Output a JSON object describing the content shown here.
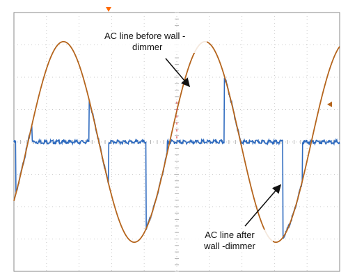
{
  "chart_data": {
    "type": "line",
    "title": "",
    "xlabel": "",
    "ylabel": "",
    "grid": true,
    "grid_divisions": {
      "x": 10,
      "y": 8
    },
    "xlim": [
      0,
      10
    ],
    "ylim": [
      -4,
      4
    ],
    "series": [
      {
        "key": "before",
        "color": "#b5651d",
        "cycles_on_screen": 2.3,
        "amplitude": 3.1,
        "phase_start_fraction": 0.4
      },
      {
        "key": "after",
        "color": "#2f6bbf",
        "amplitude": 3.1,
        "segments": [
          {
            "from": 0.0,
            "to": 0.05,
            "mode": "zero"
          },
          {
            "from": 0.05,
            "to": 0.55,
            "mode": "follow"
          },
          {
            "from": 0.55,
            "to": 2.3,
            "mode": "zero"
          },
          {
            "from": 2.3,
            "to": 2.9,
            "mode": "follow"
          },
          {
            "from": 2.9,
            "to": 4.05,
            "mode": "zero"
          },
          {
            "from": 4.05,
            "to": 4.7,
            "mode": "follow"
          },
          {
            "from": 4.7,
            "to": 6.45,
            "mode": "zero"
          },
          {
            "from": 6.45,
            "to": 6.95,
            "mode": "follow"
          },
          {
            "from": 6.95,
            "to": 8.25,
            "mode": "zero"
          },
          {
            "from": 8.25,
            "to": 8.85,
            "mode": "follow"
          },
          {
            "from": 8.85,
            "to": 10.0,
            "mode": "zero"
          }
        ]
      }
    ],
    "annotations": {
      "before_line1": "AC line before wall -",
      "before_line2": "dimmer",
      "after_line1": "AC line  after",
      "after_line2": "wall -dimmer"
    }
  },
  "colors": {
    "grid": "#c9c9c9",
    "frame": "#8a8a8a",
    "marker": "#ff6a00"
  }
}
